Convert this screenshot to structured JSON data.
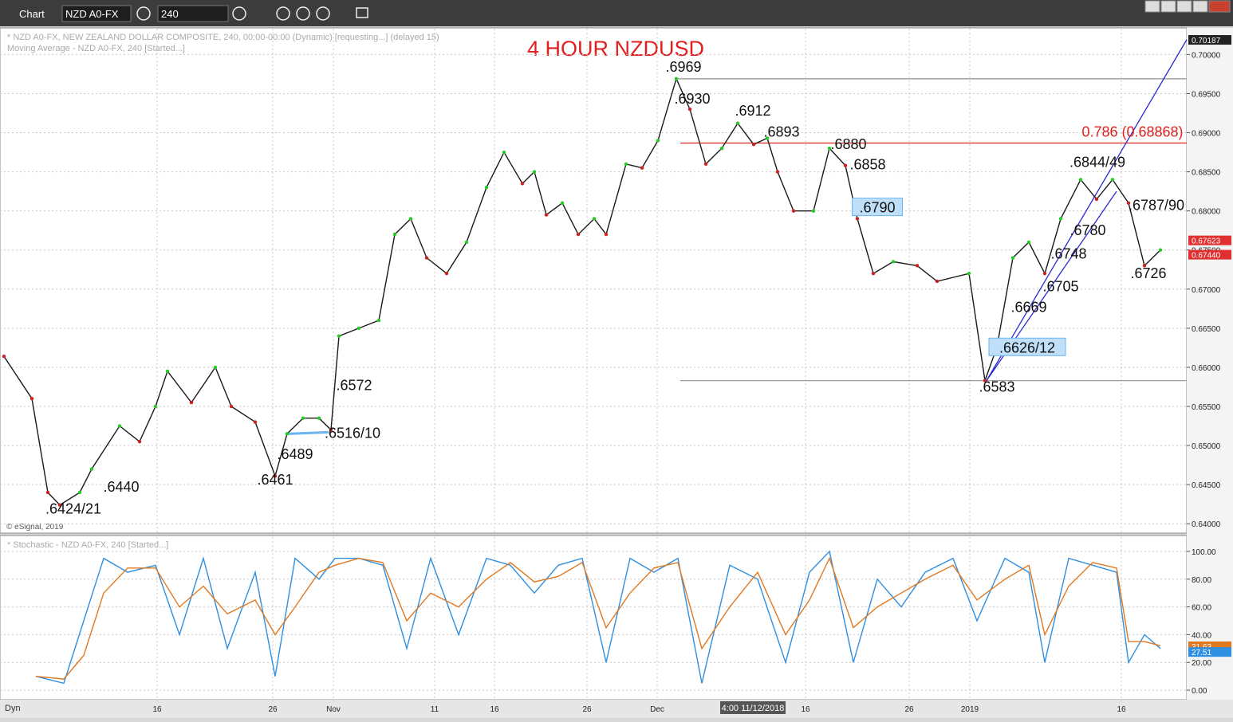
{
  "toolbar": {
    "label": "Chart",
    "symbol": "NZD A0-FX",
    "interval": "240"
  },
  "footer": {
    "mode": "Dyn",
    "cursor_time": "4:00 11/12/2018"
  },
  "chart_data": [
    {
      "type": "line",
      "title": "4 HOUR NZDUSD",
      "subtitle": "* NZD A0-FX, NEW ZEALAND DOLLAR COMPOSITE, 240, 00:00-00:00 (Dynamic) [requesting...] (delayed 15)",
      "subtitle2": "Moving Average - NZD A0-FX, 240 [Started...]",
      "credit": "© eSignal, 2019",
      "xlim": [
        0,
        372
      ],
      "ylim": [
        0.6389,
        0.7033
      ],
      "xticks": [
        {
          "value": 49.25,
          "label": "16"
        },
        {
          "value": 85.5,
          "label": "26"
        },
        {
          "value": 104.5,
          "label": "Nov"
        },
        {
          "value": 136.25,
          "label": "11"
        },
        {
          "value": 155,
          "label": "16"
        },
        {
          "value": 184,
          "label": "26"
        },
        {
          "value": 206,
          "label": "Dec"
        },
        {
          "value": 252.5,
          "label": "16"
        },
        {
          "value": 285,
          "label": "26"
        },
        {
          "value": 304,
          "label": "2019"
        },
        {
          "value": 351.5,
          "label": "16"
        }
      ],
      "yticks": [
        {
          "value": 0.64,
          "label": "0.64000"
        },
        {
          "value": 0.645,
          "label": "0.64500"
        },
        {
          "value": 0.65,
          "label": "0.65000"
        },
        {
          "value": 0.655,
          "label": "0.65500"
        },
        {
          "value": 0.66,
          "label": "0.66000"
        },
        {
          "value": 0.665,
          "label": "0.66500"
        },
        {
          "value": 0.67,
          "label": "0.67000"
        },
        {
          "value": 0.675,
          "label": "0.67500"
        },
        {
          "value": 0.68,
          "label": "0.68000"
        },
        {
          "value": 0.685,
          "label": "0.68500"
        },
        {
          "value": 0.69,
          "label": "0.69000"
        },
        {
          "value": 0.695,
          "label": "0.69500"
        },
        {
          "value": 0.7,
          "label": "0.70000"
        }
      ],
      "grid": true,
      "x": [
        1.25,
        10,
        15,
        18.75,
        25,
        28.75,
        37.5,
        43.75,
        48.75,
        52.5,
        60,
        67.5,
        72.5,
        80,
        86.25,
        90,
        95,
        100,
        103.75,
        106.25,
        112.5,
        118.75,
        123.75,
        128.75,
        133.75,
        140,
        146.25,
        152.5,
        158,
        163.75,
        167.5,
        171.25,
        176.25,
        181.25,
        186.25,
        190,
        196.25,
        201.25,
        206.25,
        212,
        216.25,
        221.25,
        226.25,
        231.25,
        236.25,
        240.5,
        243.75,
        248.75,
        255,
        260,
        265,
        268.75,
        273.75,
        280,
        287.5,
        293.75,
        303.75,
        308.75,
        312.5,
        317.5,
        322.5,
        327.5,
        332.5,
        338.75,
        343.75,
        348.75,
        353.75,
        358.75,
        363.75
      ],
      "series": [
        {
          "name": "NZD A0-FX",
          "color": "#1a1a1a",
          "values": [
            0.6614,
            0.656,
            0.644,
            0.6424,
            0.644,
            0.647,
            0.6525,
            0.6505,
            0.655,
            0.6595,
            0.6555,
            0.66,
            0.655,
            0.653,
            0.6461,
            0.6515,
            0.6535,
            0.6535,
            0.652,
            0.664,
            0.665,
            0.666,
            0.677,
            0.679,
            0.674,
            0.672,
            0.676,
            0.683,
            0.6875,
            0.6835,
            0.685,
            0.6795,
            0.681,
            0.677,
            0.679,
            0.677,
            0.686,
            0.6855,
            0.689,
            0.6969,
            0.693,
            0.686,
            0.688,
            0.6912,
            0.6885,
            0.6893,
            0.685,
            0.68,
            0.68,
            0.688,
            0.6858,
            0.679,
            0.672,
            0.6735,
            0.673,
            0.671,
            0.672,
            0.6583,
            0.6626,
            0.674,
            0.676,
            0.672,
            0.679,
            0.684,
            0.6815,
            0.684,
            0.681,
            0.673,
            0.675
          ]
        }
      ],
      "price_tags": [
        {
          "value": 0.70187,
          "label": "0.70187",
          "color": "#222222"
        },
        {
          "value": 0.67623,
          "label": "0.67623",
          "color": "#e03030"
        },
        {
          "value": 0.6744,
          "label": "0.67440",
          "color": "#e03030"
        }
      ],
      "lines": [
        {
          "x0": 212.5,
          "y0": 0.6969,
          "x1": 372,
          "y1": 0.6969,
          "color": "#9a9a9a"
        },
        {
          "x0": 213.25,
          "y0": 0.6583,
          "x1": 372,
          "y1": 0.6583,
          "color": "#9a9a9a"
        },
        {
          "x0": 213.25,
          "y0": 0.68868,
          "x1": 372,
          "y1": 0.68868,
          "color": "#e02020"
        },
        {
          "x0": 309.25,
          "y0": 0.6583,
          "x1": 372,
          "y1": 0.7019,
          "color": "#2a2ad0"
        },
        {
          "x0": 309.25,
          "y0": 0.6583,
          "x1": 350,
          "y1": 0.6825,
          "color": "#2a2ad0"
        },
        {
          "x0": 90.5,
          "y0": 0.6515,
          "x1": 103,
          "y1": 0.6517,
          "color": "#6ab4f0"
        }
      ],
      "annotations": [
        {
          "text": ".6969",
          "x": 214.25,
          "y": 0.6978
        },
        {
          "text": ".6930",
          "x": 217,
          "y": 0.6937
        },
        {
          "text": ".6912",
          "x": 236,
          "y": 0.6922
        },
        {
          "text": ".6893",
          "x": 245,
          "y": 0.6895
        },
        {
          "text": ".6880",
          "x": 266,
          "y": 0.6879
        },
        {
          "text": ".6858",
          "x": 272,
          "y": 0.6853
        },
        {
          "text": ".6790",
          "x": 275,
          "y": 0.6798,
          "boxed": true
        },
        {
          "text": ".6844/49",
          "x": 344,
          "y": 0.6856
        },
        {
          "text": ".6787/90",
          "x": 362.5,
          "y": 0.6801
        },
        {
          "text": ".6780",
          "x": 341,
          "y": 0.6769
        },
        {
          "text": ".6748",
          "x": 335,
          "y": 0.6739
        },
        {
          "text": ".6705",
          "x": 332.5,
          "y": 0.6697
        },
        {
          "text": ".6669",
          "x": 322.5,
          "y": 0.6671
        },
        {
          "text": ".6626/12",
          "x": 322,
          "y": 0.6619,
          "boxed": true
        },
        {
          "text": ".6583",
          "x": 312.5,
          "y": 0.6569
        },
        {
          "text": ".6726",
          "x": 360,
          "y": 0.6714
        },
        {
          "text": ".6572",
          "x": 111,
          "y": 0.6571
        },
        {
          "text": ".6516/10",
          "x": 110.5,
          "y": 0.651
        },
        {
          "text": ".6489",
          "x": 92.5,
          "y": 0.6483
        },
        {
          "text": ".6461",
          "x": 86.25,
          "y": 0.645
        },
        {
          "text": ".6440",
          "x": 38,
          "y": 0.6441
        },
        {
          "text": ".6424/21",
          "x": 23,
          "y": 0.6413
        },
        {
          "text": "0.786 (0.68868)",
          "x": 355,
          "y": 0.6895,
          "color": "#e02020"
        }
      ]
    },
    {
      "type": "line",
      "subtitle": "* Stochastic - NZD A0-FX, 240 [Started...]",
      "xlim": [
        0,
        372
      ],
      "ylim": [
        -8,
        110.3
      ],
      "yticks": [
        {
          "value": 0,
          "label": "0.00"
        },
        {
          "value": 20,
          "label": "20.00"
        },
        {
          "value": 40,
          "label": "40.00"
        },
        {
          "value": 60,
          "label": "60.00"
        },
        {
          "value": 80,
          "label": "80.00"
        },
        {
          "value": 100,
          "label": "100.00"
        }
      ],
      "grid": true,
      "x": [
        11.25,
        20,
        26.25,
        32.5,
        40,
        48.75,
        56.25,
        63.75,
        71.25,
        80,
        86.25,
        92.5,
        100,
        105,
        112.5,
        120,
        127.5,
        135,
        143.75,
        152.5,
        160,
        167.5,
        175,
        182.5,
        190,
        197.5,
        205,
        212.5,
        220,
        228.75,
        237.5,
        246.25,
        253.75,
        260,
        267.5,
        275,
        282.5,
        290,
        298.75,
        306.25,
        315,
        322.5,
        327.5,
        335,
        342.5,
        350,
        353.75,
        358.75,
        363.75
      ],
      "series": [
        {
          "name": "%K",
          "color": "#2f8fe0",
          "values": [
            10,
            5,
            50,
            95,
            85,
            90,
            40,
            95,
            30,
            85,
            10,
            95,
            80,
            95,
            95,
            90,
            30,
            95,
            40,
            95,
            90,
            70,
            90,
            95,
            20,
            95,
            85,
            95,
            5,
            90,
            80,
            20,
            85,
            100,
            20,
            80,
            60,
            85,
            95,
            50,
            95,
            85,
            20,
            95,
            90,
            85,
            20,
            40,
            30
          ]
        },
        {
          "name": "%D",
          "color": "#e07820",
          "values": [
            10,
            8,
            25,
            70,
            88,
            88,
            60,
            75,
            55,
            65,
            40,
            60,
            85,
            90,
            95,
            92,
            50,
            70,
            60,
            80,
            92,
            78,
            82,
            92,
            45,
            70,
            88,
            92,
            30,
            60,
            85,
            40,
            65,
            95,
            45,
            60,
            70,
            80,
            90,
            65,
            80,
            90,
            40,
            75,
            92,
            88,
            35,
            35,
            32
          ]
        }
      ],
      "price_tags": [
        {
          "value": 31.63,
          "label": "31.63",
          "color": "#e07820"
        },
        {
          "value": 27.51,
          "label": "27.51",
          "color": "#2f8fe0"
        }
      ]
    }
  ]
}
